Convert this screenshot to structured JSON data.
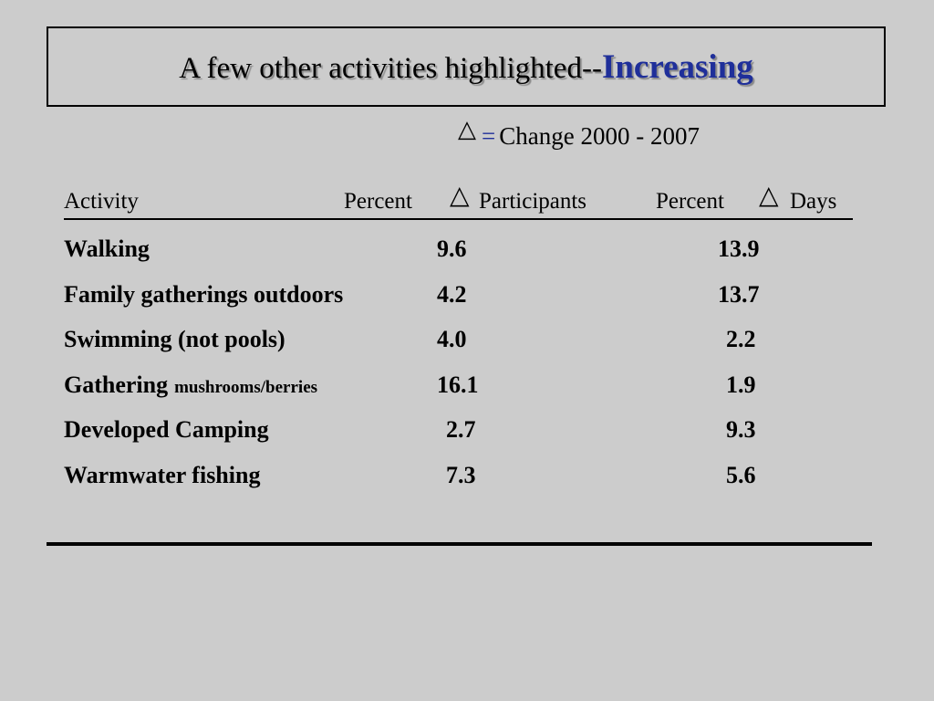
{
  "slide": {
    "title_main": "A few other activities highlighted--",
    "title_accent": "Increasing",
    "legend": {
      "delta_symbol": "△",
      "equals": "=",
      "text": "Change 2000 - 2007"
    }
  },
  "table": {
    "headers": {
      "activity": "Activity",
      "percent1": "Percent",
      "delta1": "△",
      "participants": "Participants",
      "percent2": "Percent",
      "delta2": "△",
      "days": "Days"
    },
    "rows": [
      {
        "activity": "Walking",
        "activity_small": "",
        "participants": "9.6",
        "days": "13.9"
      },
      {
        "activity": "Family gatherings outdoors",
        "activity_small": "",
        "participants": "4.2",
        "days": "13.7"
      },
      {
        "activity": "Swimming (not pools)",
        "activity_small": "",
        "participants": "4.0",
        "days": "2.2"
      },
      {
        "activity": "Gathering",
        "activity_small": "mushrooms/berries",
        "participants": "16.1",
        "days": "1.9"
      },
      {
        "activity": "Developed Camping",
        "activity_small": "",
        "participants": "2.7",
        "days": "9.3"
      },
      {
        "activity": "Warmwater fishing",
        "activity_small": "",
        "participants": "7.3",
        "days": "5.6"
      }
    ]
  }
}
